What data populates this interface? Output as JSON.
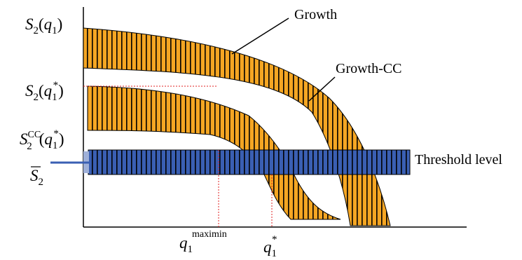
{
  "colors": {
    "orange": "#f5a623",
    "blue": "#3a5fb3",
    "stripe": "#000000",
    "guide": "#e02020",
    "axis": "#000000"
  },
  "labels": {
    "growth": "Growth",
    "growth_cc": "Growth-CC",
    "threshold": "Threshold level"
  },
  "y_labels": {
    "s2_q1": {
      "main": "S",
      "sub": "2",
      "open": "(",
      "var": "q",
      "var_sub": "1",
      "close": ")"
    },
    "s2_q1_star": {
      "main": "S",
      "sub": "2",
      "open": "(",
      "var": "q",
      "var_sub": "1",
      "var_sup": "*",
      "close": ")"
    },
    "s2cc_q1_star": {
      "main": "S",
      "sub": "2",
      "sup": "CC",
      "open": "(",
      "var": "q",
      "var_sub": "1",
      "var_sup": "*",
      "close": ")"
    },
    "s2_bar": {
      "main": "S",
      "sub": "2"
    }
  },
  "x_labels": {
    "q1_maximin": {
      "main": "q",
      "sub": "1",
      "sup": "maximin"
    },
    "q1_star": {
      "main": "q",
      "sub": "1",
      "sup": "*"
    }
  }
}
